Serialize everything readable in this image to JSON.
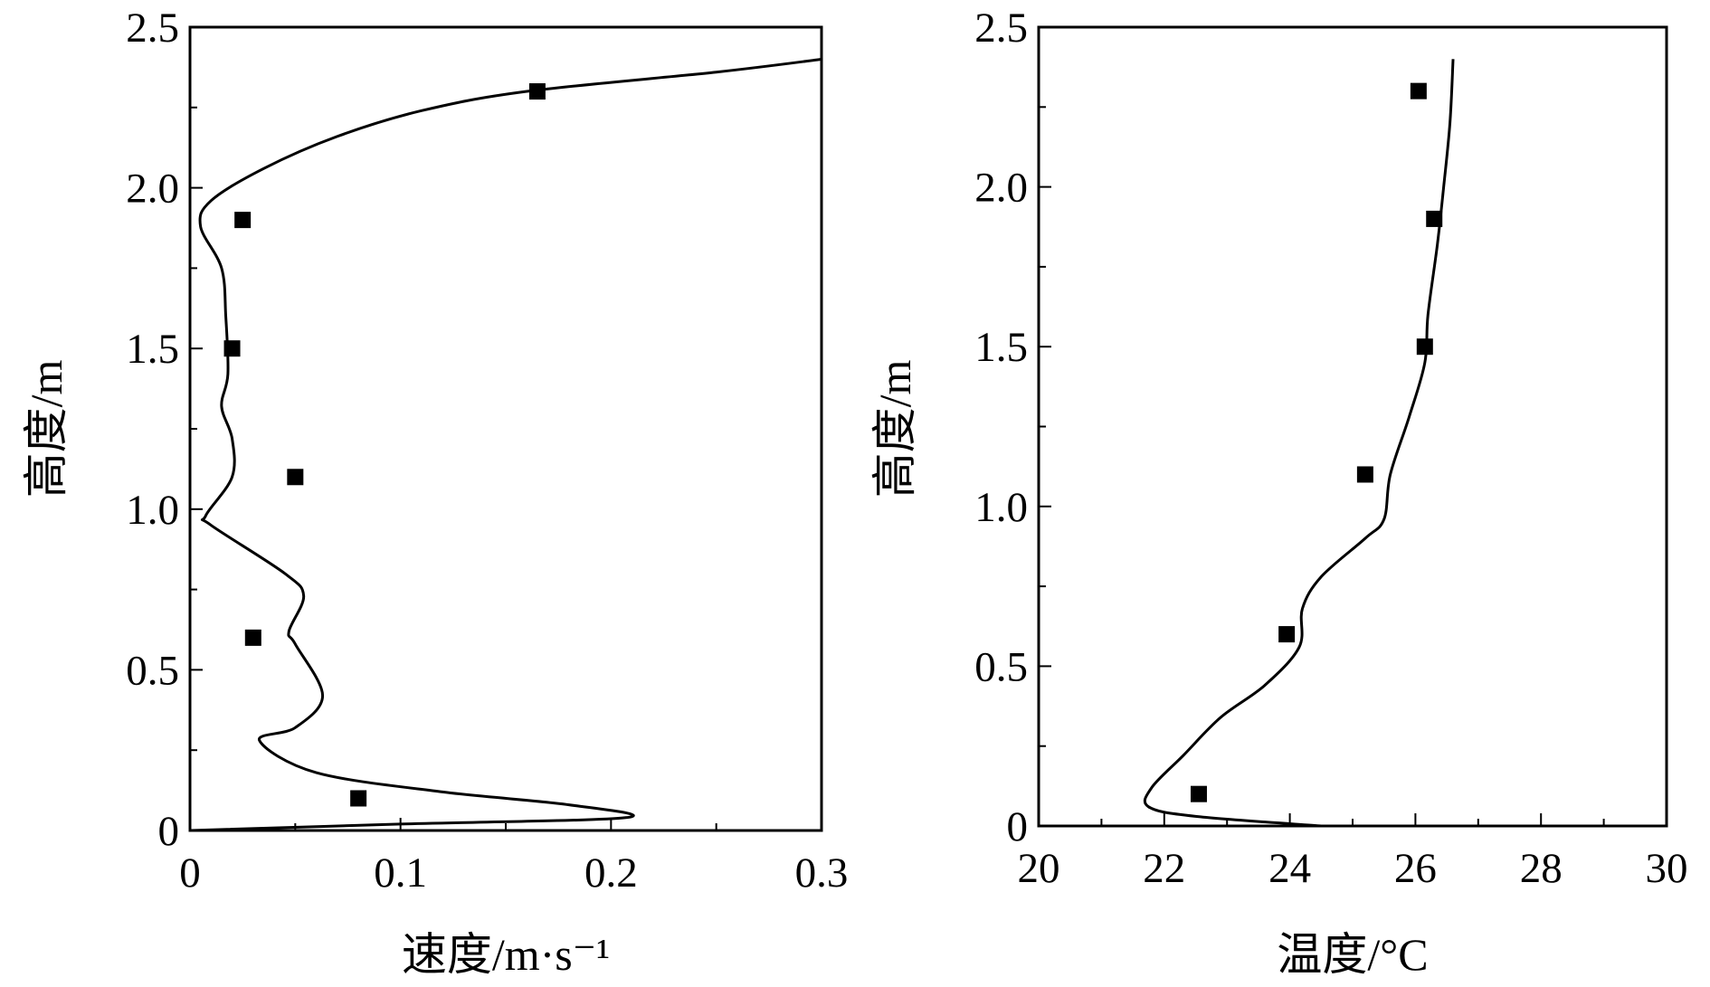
{
  "chart_data": [
    {
      "type": "line",
      "xlabel": "速度/m·s⁻¹",
      "ylabel": "高度/m",
      "xlim": [
        0,
        0.3
      ],
      "ylim": [
        0,
        2.5
      ],
      "xticks": [
        "0",
        "0.1",
        "0.2",
        "0.3"
      ],
      "yticks": [
        "0",
        "0.5",
        "1.0",
        "1.5",
        "2.0",
        "2.5"
      ],
      "xtick_values": [
        0,
        0.1,
        0.2,
        0.3
      ],
      "ytick_values": [
        0,
        0.5,
        1.0,
        1.5,
        2.0,
        2.5
      ],
      "series": [
        {
          "kind": "line",
          "points": [
            [
              0.0,
              0.0
            ],
            [
              0.1,
              0.02
            ],
            [
              0.207,
              0.04
            ],
            [
              0.18,
              0.08
            ],
            [
              0.12,
              0.12
            ],
            [
              0.06,
              0.18
            ],
            [
              0.033,
              0.28
            ],
            [
              0.05,
              0.32
            ],
            [
              0.063,
              0.42
            ],
            [
              0.05,
              0.58
            ],
            [
              0.047,
              0.62
            ],
            [
              0.054,
              0.73
            ],
            [
              0.045,
              0.8
            ],
            [
              0.01,
              0.95
            ],
            [
              0.0075,
              0.98
            ],
            [
              0.02,
              1.1
            ],
            [
              0.02,
              1.22
            ],
            [
              0.015,
              1.32
            ],
            [
              0.018,
              1.42
            ],
            [
              0.017,
              1.6
            ],
            [
              0.015,
              1.75
            ],
            [
              0.005,
              1.88
            ],
            [
              0.01,
              1.96
            ],
            [
              0.035,
              2.06
            ],
            [
              0.07,
              2.16
            ],
            [
              0.11,
              2.24
            ],
            [
              0.16,
              2.3
            ],
            [
              0.25,
              2.36
            ],
            [
              0.3,
              2.4
            ]
          ]
        },
        {
          "kind": "scatter",
          "points": [
            [
              0.08,
              0.1
            ],
            [
              0.03,
              0.6
            ],
            [
              0.05,
              1.1
            ],
            [
              0.02,
              1.5
            ],
            [
              0.025,
              1.9
            ],
            [
              0.165,
              2.3
            ]
          ]
        }
      ]
    },
    {
      "type": "line",
      "xlabel": "温度/°C",
      "ylabel": "高度/m",
      "xlim": [
        20,
        30
      ],
      "ylim": [
        0,
        2.5
      ],
      "xticks": [
        "20",
        "22",
        "24",
        "26",
        "28",
        "30"
      ],
      "yticks": [
        "0",
        "0.5",
        "1.0",
        "1.5",
        "2.0",
        "2.5"
      ],
      "xtick_values": [
        20,
        22,
        24,
        26,
        28,
        30
      ],
      "ytick_values": [
        0,
        0.5,
        1.0,
        1.5,
        2.0,
        2.5
      ],
      "series": [
        {
          "kind": "line",
          "points": [
            [
              24.5,
              0.0
            ],
            [
              22.5,
              0.03
            ],
            [
              21.75,
              0.06
            ],
            [
              21.8,
              0.12
            ],
            [
              22.3,
              0.22
            ],
            [
              22.9,
              0.34
            ],
            [
              23.6,
              0.44
            ],
            [
              24.15,
              0.56
            ],
            [
              24.2,
              0.68
            ],
            [
              24.5,
              0.78
            ],
            [
              25.2,
              0.9
            ],
            [
              25.5,
              0.96
            ],
            [
              25.6,
              1.1
            ],
            [
              25.9,
              1.28
            ],
            [
              26.15,
              1.45
            ],
            [
              26.2,
              1.6
            ],
            [
              26.35,
              1.82
            ],
            [
              26.45,
              2.0
            ],
            [
              26.55,
              2.2
            ],
            [
              26.6,
              2.4
            ]
          ]
        },
        {
          "kind": "scatter",
          "points": [
            [
              22.55,
              0.1
            ],
            [
              23.95,
              0.6
            ],
            [
              25.2,
              1.1
            ],
            [
              26.15,
              1.5
            ],
            [
              26.3,
              1.9
            ],
            [
              26.05,
              2.3
            ]
          ]
        }
      ]
    }
  ]
}
